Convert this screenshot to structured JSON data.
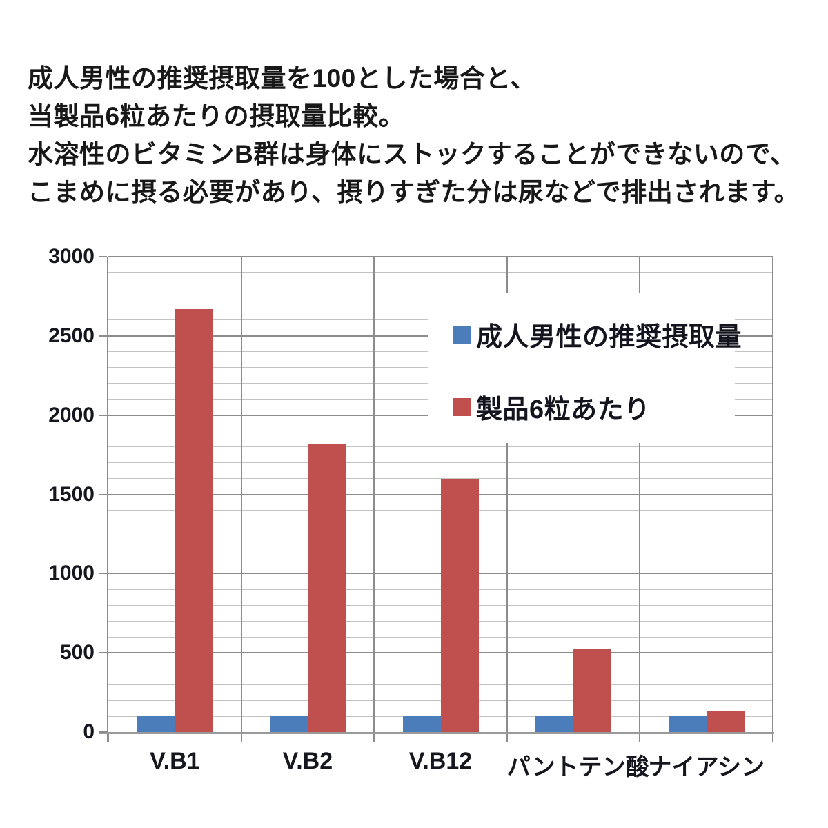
{
  "page": {
    "background_color": "#ffffff",
    "text_color": "#181818"
  },
  "header": {
    "lines": [
      "成人男性の推奨摂取量を100とした場合と、",
      "当製品6粒あたりの摂取量比較。",
      "水溶性のビタミンB群は身体にストックすることができないので、",
      "こまめに摂る必要があり、摂りすぎた分は尿などで排出されます。"
    ]
  },
  "chart_data": {
    "type": "bar",
    "categories": [
      "V.B1",
      "V.B2",
      "V.B12",
      "パントテン酸",
      "ナイアシン"
    ],
    "series": [
      {
        "name": "成人男性の推奨摂取量",
        "color": "#4a7dba",
        "values": [
          100,
          100,
          100,
          100,
          100
        ]
      },
      {
        "name": "製品6粒あたり",
        "color": "#c0504d",
        "values": [
          2670,
          1820,
          1600,
          525,
          130
        ]
      }
    ],
    "title": "",
    "xlabel": "",
    "ylabel": "",
    "ylim": [
      0,
      3000
    ],
    "yticks": [
      0,
      500,
      1000,
      1500,
      2000,
      2500,
      3000
    ],
    "minor_grid_interval": 100,
    "major_grid_interval": 500,
    "grid": true,
    "legend_position": "inside-upper-right",
    "colors": {
      "grid_major": "#8c8c8c",
      "grid_minor": "#c3c3c3",
      "axis": "#9a9a9a",
      "tick_text": "#16161f"
    }
  }
}
